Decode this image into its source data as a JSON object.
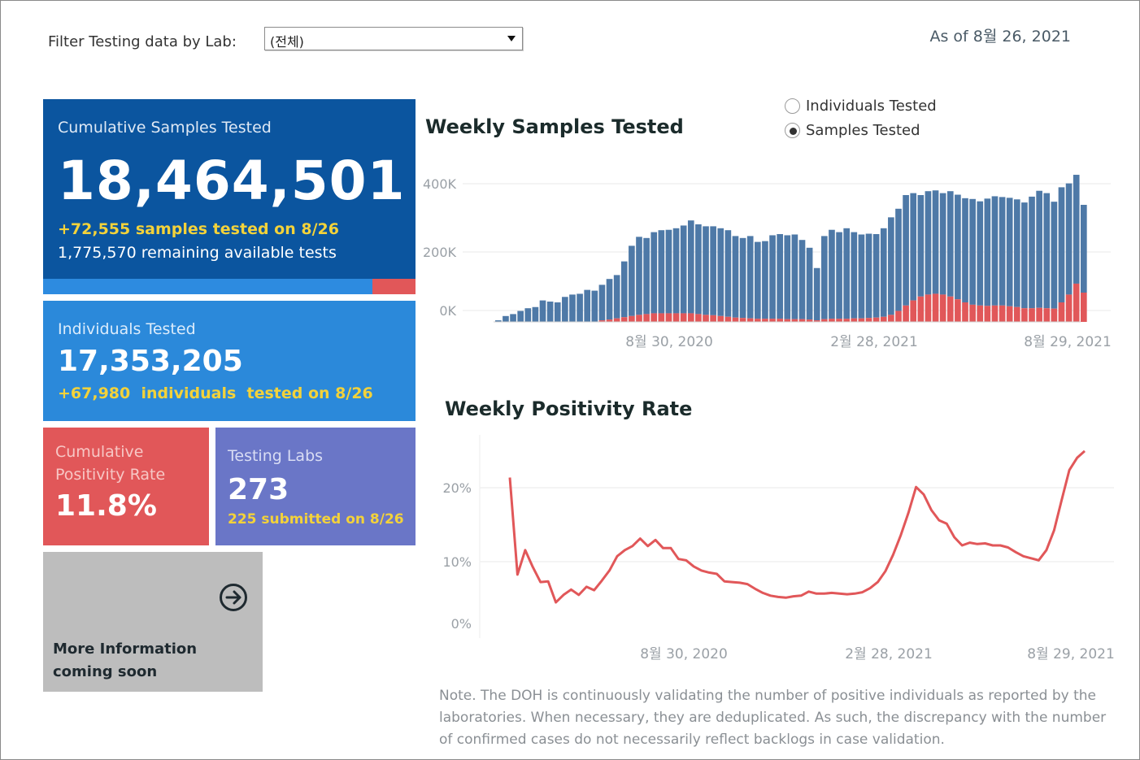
{
  "filter": {
    "label": "Filter Testing data by Lab:",
    "selected": "(전체)"
  },
  "as_of": "As of 8월 26, 2021",
  "cards": {
    "samples": {
      "label": "Cumulative Samples Tested",
      "value": "18,464,501",
      "delta": "+72,555 samples tested on 8/26",
      "remaining": "1,775,570 remaining available tests",
      "progress_fraction": 0.885
    },
    "individuals": {
      "label": "Individuals Tested",
      "value": "17,353,205",
      "delta": "+67,980  individuals  tested on 8/26"
    },
    "positivity": {
      "label": "Cumulative Positivity Rate",
      "value": "11.8%"
    },
    "labs": {
      "label": "Testing Labs",
      "value": "273",
      "delta": "225 submitted on 8/26"
    },
    "more": {
      "text": "More Information coming soon",
      "icon": "arrow-circle-right-icon"
    }
  },
  "toggle": {
    "options": [
      {
        "label": "Individuals Tested",
        "selected": false
      },
      {
        "label": "Samples Tested",
        "selected": true
      }
    ]
  },
  "colors": {
    "blue": "#4e79a7",
    "red": "#e15759",
    "navy": "#0b559f",
    "yellow": "#f3d23a"
  },
  "note": "Note. The DOH is continuously validating the number of positive individuals as reported by the laboratories. When necessary, they are deduplicated. As such, the discrepancy with the number of confirmed cases do not necessarily reflect backlogs in case validation.",
  "chart_data": [
    {
      "type": "bar",
      "title": "Weekly Samples Tested",
      "stacked": true,
      "x_tick_labels": [
        "8월 30, 2020",
        "2월 28, 2021",
        "8월 29, 2021"
      ],
      "y_tick_labels": [
        "400K",
        "200K",
        "0K"
      ],
      "ylim": [
        0,
        450000
      ],
      "grid": true,
      "series": [
        {
          "color": "#4e79a7",
          "values": [
            4000,
            15000,
            20000,
            28000,
            35000,
            38000,
            55000,
            52000,
            50000,
            64000,
            70000,
            72000,
            82000,
            80000,
            95000,
            110000,
            120000,
            155000,
            195000,
            218000,
            215000,
            230000,
            235000,
            236000,
            240000,
            247000,
            260000,
            250000,
            245000,
            245000,
            240000,
            235000,
            220000,
            215000,
            220000,
            205000,
            207000,
            222000,
            225000,
            222000,
            224000,
            210000,
            190000,
            138000,
            220000,
            236000,
            230000,
            240000,
            230000,
            224000,
            226000,
            225000,
            240000,
            268000,
            290000,
            325000,
            330000,
            325000,
            335000,
            337000,
            330000,
            335000,
            326000,
            317000,
            315000,
            309000,
            316000,
            322000,
            320000,
            318000,
            314000,
            306000,
            321000,
            336000,
            330000,
            308000,
            345000,
            355000,
            377000,
            300000
          ]
        },
        {
          "color": "#e15759",
          "values": [
            0,
            0,
            0,
            0,
            0,
            0,
            0,
            0,
            0,
            0,
            0,
            0,
            0,
            0,
            4000,
            6000,
            9000,
            12000,
            15000,
            18000,
            20000,
            22000,
            22000,
            22000,
            22000,
            22000,
            22000,
            20000,
            18000,
            17000,
            15000,
            13000,
            11000,
            10000,
            9000,
            8000,
            8000,
            8000,
            8000,
            7000,
            7000,
            7000,
            6000,
            4000,
            7000,
            8000,
            8000,
            8000,
            9000,
            9000,
            10000,
            11000,
            13000,
            18000,
            28000,
            42000,
            55000,
            65000,
            70000,
            72000,
            70000,
            65000,
            58000,
            50000,
            44000,
            42000,
            41000,
            42000,
            42000,
            40000,
            38000,
            35000,
            35000,
            36000,
            35000,
            34000,
            50000,
            70000,
            98000,
            75000
          ]
        }
      ]
    },
    {
      "type": "line",
      "title": "Weekly Positivity Rate",
      "x_tick_labels": [
        "8월 30, 2020",
        "2월 28, 2021",
        "8월 29, 2021"
      ],
      "y_tick_labels": [
        "20%",
        "10%",
        "0%"
      ],
      "ylim": [
        0,
        25
      ],
      "grid": true,
      "color": "#e15759",
      "values": [
        21.5,
        7.2,
        10.8,
        8.3,
        6.1,
        6.2,
        3.1,
        4.2,
        5.0,
        4.2,
        5.4,
        4.9,
        6.3,
        7.8,
        9.9,
        10.8,
        11.4,
        12.5,
        11.4,
        12.3,
        11.1,
        11.1,
        9.5,
        9.3,
        8.4,
        7.8,
        7.5,
        7.3,
        6.2,
        6.1,
        6.0,
        5.8,
        5.1,
        4.5,
        4.1,
        3.9,
        3.8,
        4.0,
        4.1,
        4.7,
        4.4,
        4.4,
        4.5,
        4.4,
        4.3,
        4.4,
        4.6,
        5.2,
        6.1,
        7.7,
        10.1,
        13.0,
        16.3,
        20.1,
        19.0,
        16.7,
        15.2,
        14.7,
        12.7,
        11.5,
        11.9,
        11.7,
        11.8,
        11.5,
        11.5,
        11.2,
        10.5,
        9.9,
        9.6,
        9.3,
        10.8,
        13.7,
        18.2,
        22.6,
        24.4,
        25.4
      ]
    }
  ]
}
